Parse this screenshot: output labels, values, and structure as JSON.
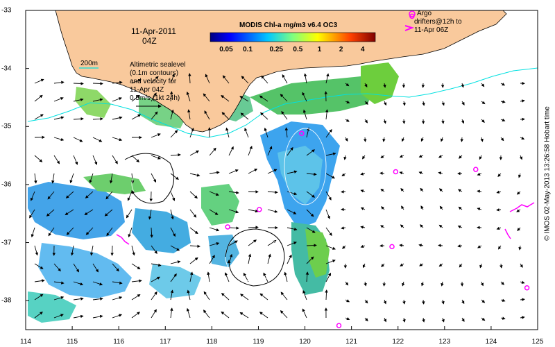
{
  "map": {
    "date_line1": "11-Apr-2011",
    "date_line2": "04Z",
    "colorbar": {
      "title": "MODIS Chl-a mg/m3 v6.4 OC3",
      "ticks": [
        "0.05",
        "0.1",
        "0.25",
        "0.5",
        "1",
        "2",
        "4"
      ],
      "tick_values": [
        0.05,
        0.1,
        0.25,
        0.5,
        1,
        2,
        4
      ],
      "range": [
        0.03,
        6
      ],
      "scale": "log"
    },
    "legend_isobath": "200m",
    "altimetry_note": [
      "Altimetric sealevel",
      "(0.1m contours)",
      "and velocity for",
      "11-Apr 04Z",
      "0.5m/s (1kt 24h)"
    ],
    "argo_note": [
      "Argo",
      "drifters@12h to",
      "11-Apr 06Z"
    ],
    "credit": "© IMOS 02-May-2013 13:26:58 Hobart time",
    "x_ticks": [
      "114",
      "115",
      "116",
      "117",
      "118",
      "119",
      "120",
      "121",
      "122",
      "123",
      "124",
      "125"
    ],
    "y_ticks": [
      "-33",
      "-34",
      "-35",
      "-36",
      "-37",
      "-38"
    ],
    "lon_range": [
      114,
      125
    ],
    "lat_range": [
      -38.5,
      -33
    ],
    "colors": {
      "land": "#f9c99c",
      "isobath": "#00e0e0",
      "argo": "#ff00ff",
      "ocean_no_data": "#ffffff"
    },
    "argo_floats": [
      {
        "lon": 119.93,
        "lat": -35.12
      },
      {
        "lon": 121.95,
        "lat": -35.78
      },
      {
        "lon": 123.67,
        "lat": -35.74
      },
      {
        "lon": 119.02,
        "lat": -36.43
      },
      {
        "lon": 118.34,
        "lat": -36.73
      },
      {
        "lon": 121.87,
        "lat": -37.07
      },
      {
        "lon": 124.77,
        "lat": -37.78
      },
      {
        "lon": 120.73,
        "lat": -38.43
      },
      {
        "lon": 122.3,
        "lat": -33.1
      }
    ]
  }
}
